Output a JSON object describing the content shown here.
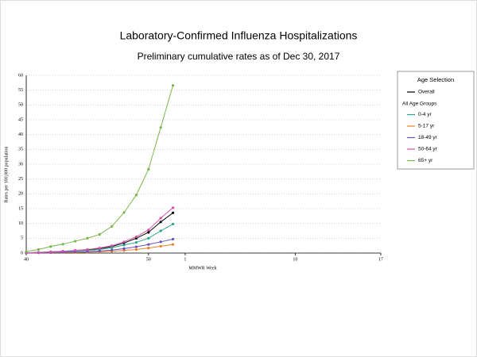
{
  "chart_data": {
    "type": "line",
    "title": "Laboratory-Confirmed Influenza Hospitalizations",
    "subtitle": "Preliminary cumulative rates as of Dec 30, 2017",
    "x_label": "MMWR Week",
    "y_label": "Rates per 100,000 population",
    "legend_title": "Age Selection",
    "legend_group_label": "All Age Groups",
    "categories": [
      "40",
      null,
      null,
      null,
      null,
      null,
      null,
      null,
      null,
      null,
      "50",
      null,
      null,
      "1",
      null,
      null,
      null,
      null,
      null,
      null,
      null,
      null,
      "10",
      null,
      null,
      null,
      null,
      null,
      null,
      "17"
    ],
    "ylim": [
      0,
      60
    ],
    "yticks": [
      0,
      5,
      10,
      15,
      20,
      25,
      30,
      35,
      40,
      45,
      50,
      55,
      60
    ],
    "grid": true,
    "series": [
      {
        "name": "Overall",
        "color": "#000000",
        "values": [
          0.1,
          0.2,
          0.4,
          0.6,
          0.8,
          1.1,
          1.5,
          2.2,
          3.4,
          5.0,
          7.0,
          10.5,
          13.6,
          null,
          null,
          null,
          null,
          null,
          null,
          null,
          null,
          null,
          null,
          null,
          null,
          null,
          null,
          null,
          null,
          null
        ]
      },
      {
        "name": "0-4 yr",
        "color": "#2aa58c",
        "values": [
          0.1,
          0.2,
          0.3,
          0.5,
          0.7,
          0.9,
          1.2,
          1.8,
          2.7,
          3.6,
          5.0,
          7.5,
          9.8,
          null,
          null,
          null,
          null,
          null,
          null,
          null,
          null,
          null,
          null,
          null,
          null,
          null,
          null,
          null,
          null,
          null
        ]
      },
      {
        "name": "5-17 yr",
        "color": "#e8802a",
        "values": [
          0,
          0.1,
          0.1,
          0.2,
          0.2,
          0.3,
          0.4,
          0.6,
          0.9,
          1.2,
          1.7,
          2.3,
          2.9,
          null,
          null,
          null,
          null,
          null,
          null,
          null,
          null,
          null,
          null,
          null,
          null,
          null,
          null,
          null,
          null,
          null
        ]
      },
      {
        "name": "18-49 yr",
        "color": "#6a4fc1",
        "values": [
          0,
          0.1,
          0.2,
          0.3,
          0.4,
          0.5,
          0.7,
          1.0,
          1.5,
          2.1,
          2.9,
          3.8,
          4.7,
          null,
          null,
          null,
          null,
          null,
          null,
          null,
          null,
          null,
          null,
          null,
          null,
          null,
          null,
          null,
          null,
          null
        ]
      },
      {
        "name": "50-64 yr",
        "color": "#d44fa8",
        "values": [
          0.1,
          0.2,
          0.4,
          0.6,
          0.9,
          1.2,
          1.7,
          2.5,
          3.8,
          5.5,
          7.8,
          11.8,
          15.3,
          null,
          null,
          null,
          null,
          null,
          null,
          null,
          null,
          null,
          null,
          null,
          null,
          null,
          null,
          null,
          null,
          null
        ]
      },
      {
        "name": "65+ yr",
        "color": "#7ab648",
        "values": [
          0.5,
          1.2,
          2.2,
          3.0,
          4.0,
          5.0,
          6.3,
          9.0,
          13.7,
          19.6,
          28.3,
          42.4,
          56.6,
          null,
          null,
          null,
          null,
          null,
          null,
          null,
          null,
          null,
          null,
          null,
          null,
          null,
          null,
          null,
          null,
          null
        ]
      }
    ]
  }
}
